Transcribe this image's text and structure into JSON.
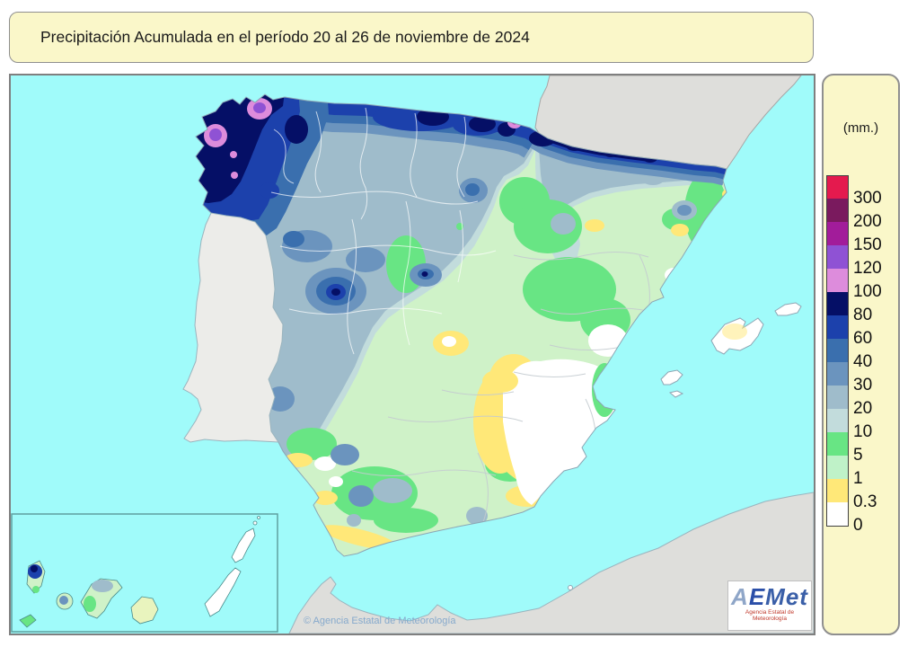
{
  "title": {
    "text": "Precipitación Acumulada en el período 20 al 26 de noviembre de 2024"
  },
  "legend": {
    "unit_label": "(mm.)",
    "entries": [
      {
        "value": "300",
        "color": "#E41A4E"
      },
      {
        "value": "200",
        "color": "#7A1A5E"
      },
      {
        "value": "150",
        "color": "#A21C9A"
      },
      {
        "value": "120",
        "color": "#8F52D4"
      },
      {
        "value": "100",
        "color": "#DD8CDC"
      },
      {
        "value": "80",
        "color": "#050F66"
      },
      {
        "value": "60",
        "color": "#1C41AC"
      },
      {
        "value": "40",
        "color": "#3A6FAE"
      },
      {
        "value": "30",
        "color": "#6B94BE"
      },
      {
        "value": "20",
        "color": "#9FBCCB"
      },
      {
        "value": "10",
        "color": "#C2DCDC"
      },
      {
        "value": "5",
        "color": "#68E584"
      },
      {
        "value": "1",
        "color": "#BFF2C8"
      },
      {
        "value": "0.3",
        "color": "#FFE878"
      },
      {
        "value": "0",
        "color": "#FFFFFF"
      }
    ]
  },
  "map": {
    "copyright": "© Agencia Estatal de Meteorología",
    "colors": {
      "sea": "#A0FBFA",
      "neighbor_land": "#DEDEDB",
      "portugal": "#ECECE9",
      "coast_line": "#8CA6B4",
      "border_white": "#FFFFFF",
      "border_gray": "#C4CBD0",
      "band_0": "#FFFFFF",
      "band_0_3": "#FFE878",
      "band_1": "#CFF2C8",
      "band_5": "#68E584",
      "band_10": "#C2DCDC",
      "band_20": "#9FBCCB",
      "band_30": "#6B94BE",
      "band_40": "#3A6FAE",
      "band_60": "#1C41AC",
      "band_80": "#050F66",
      "band_100": "#DD8CDC",
      "band_120": "#8F52D4",
      "band_150": "#A21C9A",
      "canary_mix": "#E9F4BE",
      "inset_border": "#5FA0A0"
    }
  },
  "logo": {
    "part_a": "A",
    "part_e": "E",
    "part_rest": "Met",
    "subtitle": "Agencia Estatal de Meteorología"
  }
}
